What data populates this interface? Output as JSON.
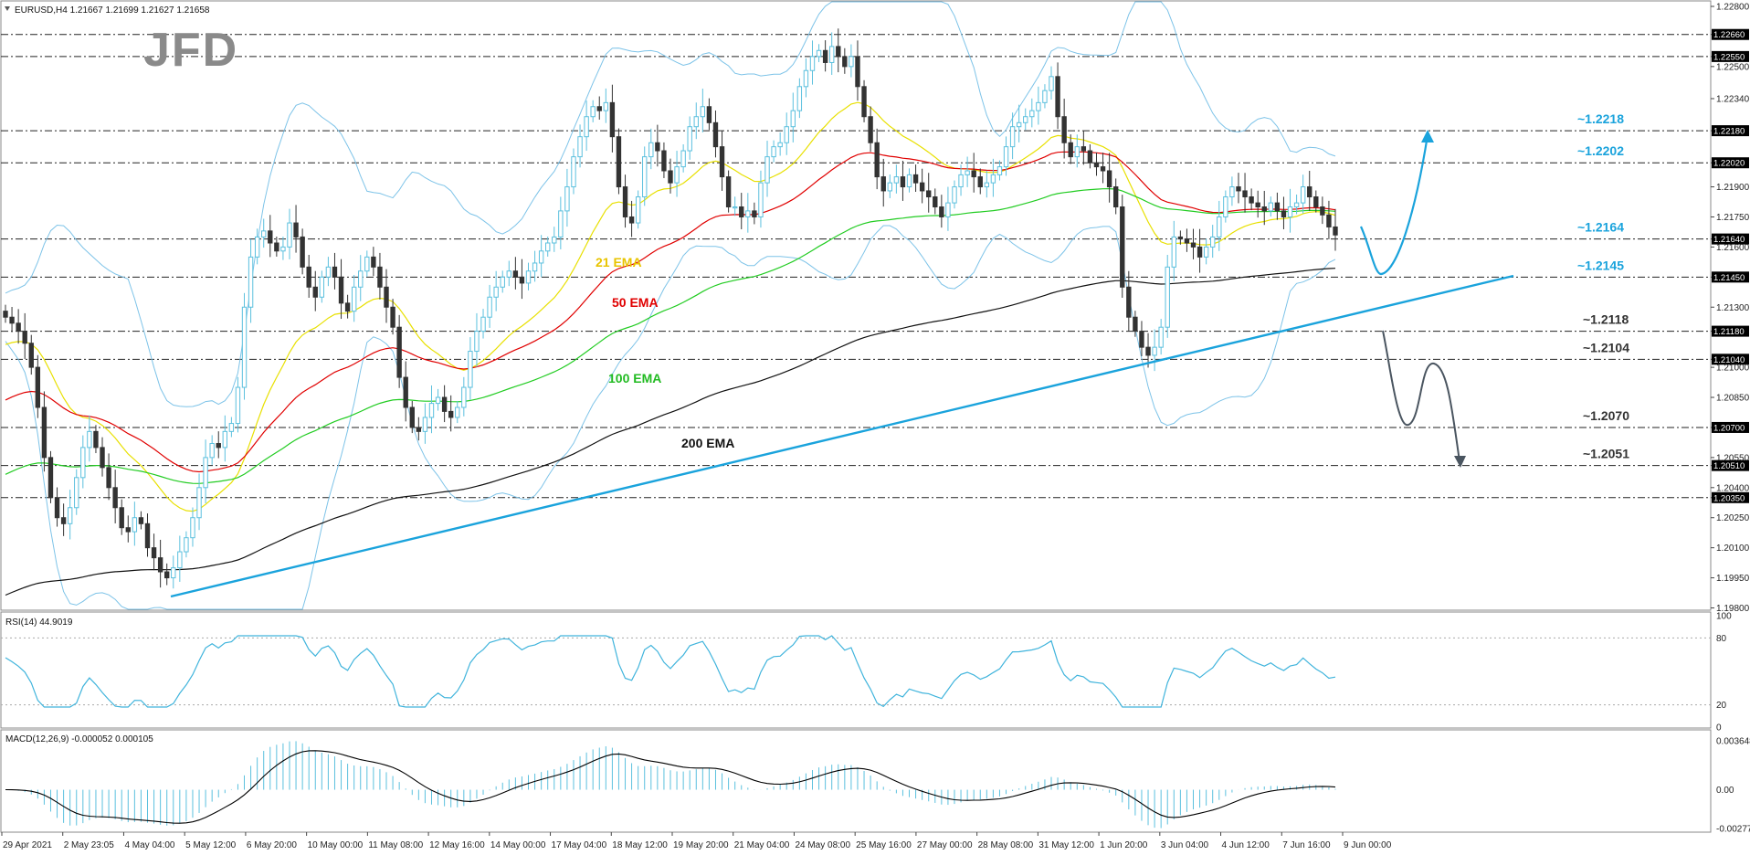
{
  "header": {
    "main": "EURUSD,H4  1.21667 1.21699 1.21627 1.21658",
    "rsi": "RSI(14) 44.9019",
    "macd": "MACD(12,26,9) -0.000052 0.000105"
  },
  "logo": "JFD",
  "colors": {
    "bull_candle": "#5bc0de",
    "bear_candle": "#333333",
    "ema21": "#e8e000",
    "ema50": "#e00000",
    "ema100": "#22cc22",
    "ema200": "#111111",
    "bollinger": "#7dc3e8",
    "trendline": "#1aa3dc",
    "level_label": "#1aa3dc",
    "level_label_dark": "#333333",
    "bull_arrow": "#1aa3dc",
    "bear_arrow": "#4a5560",
    "rsi_line": "#40b4dc",
    "macd_hist": "#5bc0de",
    "macd_signal": "#000000"
  },
  "ema_labels": {
    "ema21": "21 EMA",
    "ema50": "50 EMA",
    "ema100": "100 EMA",
    "ema200": "200 EMA"
  },
  "price_axis": {
    "ticks": [
      "1.22800",
      "1.22660",
      "1.22550",
      "1.22500",
      "1.22340",
      "1.22180",
      "1.22020",
      "1.21900",
      "1.21750",
      "1.21640",
      "1.21600",
      "1.21450",
      "1.21300",
      "1.21180",
      "1.21040",
      "1.21000",
      "1.20850",
      "1.20700",
      "1.20550",
      "1.20510",
      "1.20400",
      "1.20350",
      "1.20250",
      "1.20100",
      "1.19950",
      "1.19800"
    ],
    "boxed": [
      "1.22660",
      "1.22550",
      "1.22180",
      "1.22020",
      "1.21640",
      "1.21450",
      "1.21180",
      "1.21040",
      "1.20700",
      "1.20510",
      "1.20350"
    ]
  },
  "levels": [
    {
      "price": 1.2266,
      "label": ""
    },
    {
      "price": 1.2255,
      "label": ""
    },
    {
      "price": 1.2218,
      "label": "~1.2218"
    },
    {
      "price": 1.2202,
      "label": "~1.2202"
    },
    {
      "price": 1.2164,
      "label": "~1.2164"
    },
    {
      "price": 1.2145,
      "label": "~1.2145"
    },
    {
      "price": 1.2118,
      "label": "~1.2118"
    },
    {
      "price": 1.2104,
      "label": "~1.2104"
    },
    {
      "price": 1.207,
      "label": "~1.2070"
    },
    {
      "price": 1.2051,
      "label": "~1.2051"
    },
    {
      "price": 1.2035,
      "label": ""
    }
  ],
  "rsi_axis": {
    "ticks": [
      "100",
      "80",
      "20",
      "0"
    ]
  },
  "macd_axis": {
    "ticks": [
      "0.003648",
      "0.00",
      "-0.00277"
    ]
  },
  "time_axis": [
    "29 Apr 2021",
    "2 May 23:05",
    "4 May 04:00",
    "5 May 12:00",
    "6 May 20:00",
    "10 May 00:00",
    "11 May 08:00",
    "12 May 16:00",
    "14 May 00:00",
    "17 May 04:00",
    "18 May 12:00",
    "19 May 20:00",
    "21 May 04:00",
    "24 May 08:00",
    "25 May 16:00",
    "27 May 00:00",
    "28 May 08:00",
    "31 May 12:00",
    "1 Jun 20:00",
    "3 Jun 04:00",
    "4 Jun 12:00",
    "7 Jun 16:00",
    "9 Jun 00:00"
  ],
  "chart_data": {
    "type": "line",
    "title": "EURUSD,H4",
    "last_ohlc": {
      "open": 1.21667,
      "high": 1.21699,
      "low": 1.21627,
      "close": 1.21658
    },
    "y_range": [
      1.198,
      1.228
    ],
    "closes": [
      1.2125,
      1.2122,
      1.2118,
      1.2112,
      1.21,
      1.208,
      1.2055,
      1.2035,
      1.2025,
      1.2022,
      1.203,
      1.2045,
      1.206,
      1.2068,
      1.206,
      1.205,
      1.204,
      1.203,
      1.202,
      1.2018,
      1.2025,
      1.2022,
      1.201,
      1.2005,
      1.1998,
      1.1995,
      1.2,
      1.2008,
      1.2015,
      1.2025,
      1.204,
      1.2055,
      1.2062,
      1.206,
      1.2068,
      1.2072,
      1.209,
      1.213,
      1.2155,
      1.2165,
      1.2168,
      1.2162,
      1.2158,
      1.216,
      1.2172,
      1.2165,
      1.215,
      1.214,
      1.2135,
      1.2145,
      1.215,
      1.2145,
      1.2132,
      1.2128,
      1.214,
      1.2148,
      1.2155,
      1.215,
      1.214,
      1.213,
      1.212,
      1.2095,
      1.208,
      1.207,
      1.2068,
      1.2075,
      1.2082,
      1.2085,
      1.2078,
      1.2075,
      1.208,
      1.209,
      1.2108,
      1.2118,
      1.2125,
      1.2135,
      1.214,
      1.2145,
      1.2148,
      1.2145,
      1.2142,
      1.2148,
      1.2152,
      1.2158,
      1.2162,
      1.2165,
      1.2178,
      1.219,
      1.2205,
      1.2215,
      1.2225,
      1.223,
      1.2228,
      1.2232,
      1.2215,
      1.219,
      1.2175,
      1.2172,
      1.2185,
      1.2205,
      1.2212,
      1.2208,
      1.2198,
      1.2192,
      1.22,
      1.2208,
      1.222,
      1.2225,
      1.223,
      1.2222,
      1.221,
      1.2195,
      1.218,
      1.218,
      1.2175,
      1.2178,
      1.2175,
      1.2192,
      1.2205,
      1.221,
      1.2212,
      1.222,
      1.2228,
      1.224,
      1.2248,
      1.2255,
      1.2258,
      1.2252,
      1.226,
      1.2255,
      1.225,
      1.2255,
      1.224,
      1.2225,
      1.2212,
      1.2195,
      1.2188,
      1.2192,
      1.2195,
      1.219,
      1.2196,
      1.2192,
      1.2188,
      1.2185,
      1.218,
      1.2175,
      1.2182,
      1.219,
      1.2196,
      1.2198,
      1.2195,
      1.219,
      1.2192,
      1.2196,
      1.22,
      1.221,
      1.222,
      1.2222,
      1.2225,
      1.2228,
      1.2232,
      1.2238,
      1.2245,
      1.2225,
      1.2212,
      1.2205,
      1.221,
      1.2208,
      1.2202,
      1.22,
      1.2198,
      1.219,
      1.218,
      1.214,
      1.2125,
      1.2118,
      1.211,
      1.2106,
      1.211,
      1.212,
      1.215,
      1.2165,
      1.2164,
      1.2162,
      1.216,
      1.2155,
      1.216,
      1.2165,
      1.2175,
      1.2185,
      1.219,
      1.2188,
      1.2185,
      1.2182,
      1.218,
      1.2178,
      1.2182,
      1.2178,
      1.2175,
      1.218,
      1.2182,
      1.219,
      1.2185,
      1.218,
      1.2176,
      1.217,
      1.2166
    ],
    "levels": [
      1.2266,
      1.2255,
      1.2218,
      1.2202,
      1.2164,
      1.2145,
      1.2118,
      1.2104,
      1.207,
      1.2051,
      1.2035
    ],
    "series": [
      {
        "name": "21 EMA"
      },
      {
        "name": "50 EMA"
      },
      {
        "name": "100 EMA"
      },
      {
        "name": "200 EMA"
      }
    ],
    "rsi": {
      "last": 44.9019,
      "levels": [
        80,
        20
      ],
      "range": [
        0,
        100
      ]
    },
    "macd": {
      "main": -5.2e-05,
      "signal": 0.000105,
      "range": [
        -0.00277,
        0.003648
      ]
    },
    "scenarios": [
      {
        "direction": "up",
        "dip_to": 1.2145,
        "target": 1.2218
      },
      {
        "direction": "down",
        "via": [
          1.2118,
          1.207
        ],
        "target": 1.2051
      }
    ]
  }
}
